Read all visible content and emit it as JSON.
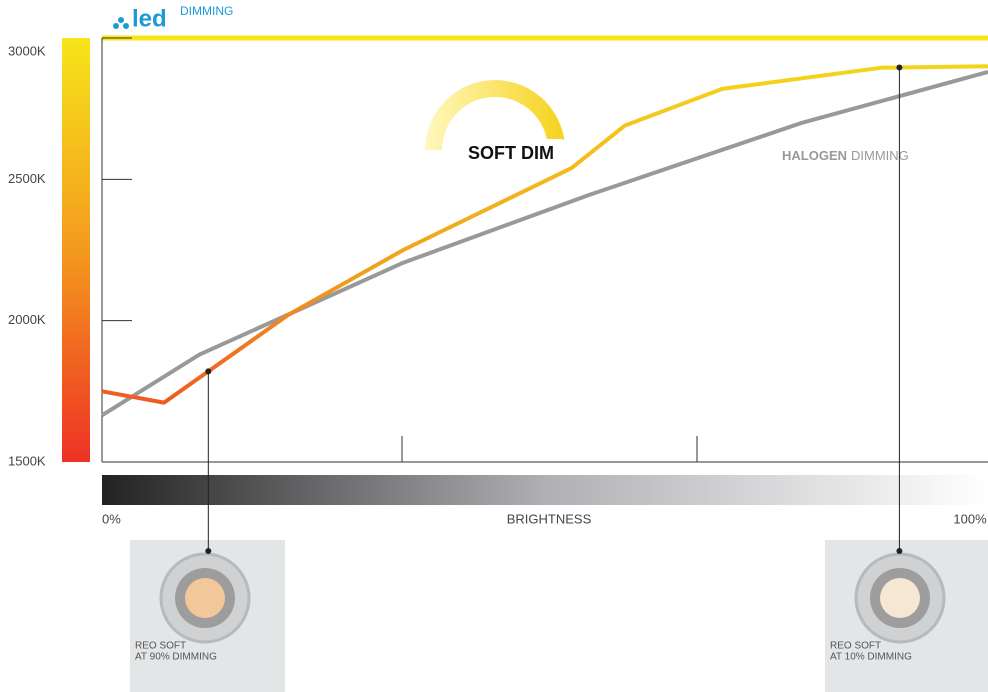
{
  "logo": {
    "brand": "led",
    "tag": "DIMMING"
  },
  "chart_data": {
    "type": "line",
    "x_label": "BRIGHTNESS",
    "xlim": [
      0,
      100
    ],
    "xticks": [
      {
        "value": 0,
        "label": "0%"
      },
      {
        "value": 100,
        "label": "100%"
      }
    ],
    "ylim": [
      1500,
      3000
    ],
    "yticks": [
      {
        "value": 1500,
        "label": "1500K"
      },
      {
        "value": 2000,
        "label": "2000K"
      },
      {
        "value": 2500,
        "label": "2500K"
      },
      {
        "value": 3000,
        "label": "3000K"
      }
    ],
    "series": [
      {
        "name": "SOFT DIM",
        "color": "#f0a020",
        "x": [
          0,
          7,
          21,
          34,
          53,
          59,
          70,
          88,
          100
        ],
        "values": [
          1750,
          1710,
          2020,
          2250,
          2540,
          2690,
          2820,
          2895,
          2900
        ]
      },
      {
        "name": "HALOGEN",
        "color": "#999999",
        "x": [
          0,
          11,
          34,
          55,
          79,
          100
        ],
        "values": [
          1665,
          1880,
          2205,
          2445,
          2700,
          2880
        ]
      }
    ],
    "halogen_suffix": "DIMMING",
    "callouts": [
      {
        "x": 12,
        "line1": "REO SOFT",
        "line2": "AT 90% DIMMING"
      },
      {
        "x": 90,
        "line1": "REO SOFT",
        "line2": "AT 10% DIMMING"
      }
    ]
  }
}
